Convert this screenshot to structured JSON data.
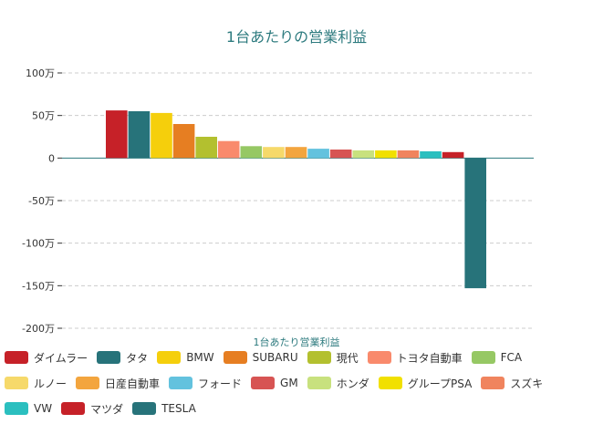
{
  "chart_data": {
    "type": "bar",
    "title": "1台あたりの営業利益",
    "xlabel": "1台あたり営業利益",
    "ylabel": "",
    "ylim": [
      -200,
      100
    ],
    "yticks": [
      100,
      50,
      0,
      -50,
      -100,
      -150,
      -200
    ],
    "ytick_labels": [
      "100万",
      "50万",
      "0",
      "-50万",
      "-100万",
      "-150万",
      "-200万"
    ],
    "grid": "horizontal-dashed",
    "legend_position": "bottom",
    "series": [
      {
        "name": "ダイムラー",
        "values": [
          56
        ],
        "color": "#c62128"
      },
      {
        "name": "タタ",
        "values": [
          55
        ],
        "color": "#27737a"
      },
      {
        "name": "BMW",
        "values": [
          53
        ],
        "color": "#f5cf0c"
      },
      {
        "name": "SUBARU",
        "values": [
          40
        ],
        "color": "#e67e22"
      },
      {
        "name": "現代",
        "values": [
          25
        ],
        "color": "#b3c02f"
      },
      {
        "name": "トヨタ自動車",
        "values": [
          20
        ],
        "color": "#f98a6c"
      },
      {
        "name": "FCA",
        "values": [
          14
        ],
        "color": "#96c864"
      },
      {
        "name": "ルノー",
        "values": [
          13
        ],
        "color": "#f6d96a"
      },
      {
        "name": "日産自動車",
        "values": [
          13
        ],
        "color": "#f3a53e"
      },
      {
        "name": "フォード",
        "values": [
          11
        ],
        "color": "#63c2de"
      },
      {
        "name": "GM",
        "values": [
          10
        ],
        "color": "#d75453"
      },
      {
        "name": "ホンダ",
        "values": [
          9
        ],
        "color": "#c8e17e"
      },
      {
        "name": "グループPSA",
        "values": [
          9
        ],
        "color": "#f1e000"
      },
      {
        "name": "スズキ",
        "values": [
          9
        ],
        "color": "#f0845e"
      },
      {
        "name": "VW",
        "values": [
          8
        ],
        "color": "#2bbfbf"
      },
      {
        "name": "マツダ",
        "values": [
          7
        ],
        "color": "#c62128"
      },
      {
        "name": "TESLA",
        "values": [
          -153
        ],
        "color": "#27737a"
      }
    ]
  }
}
